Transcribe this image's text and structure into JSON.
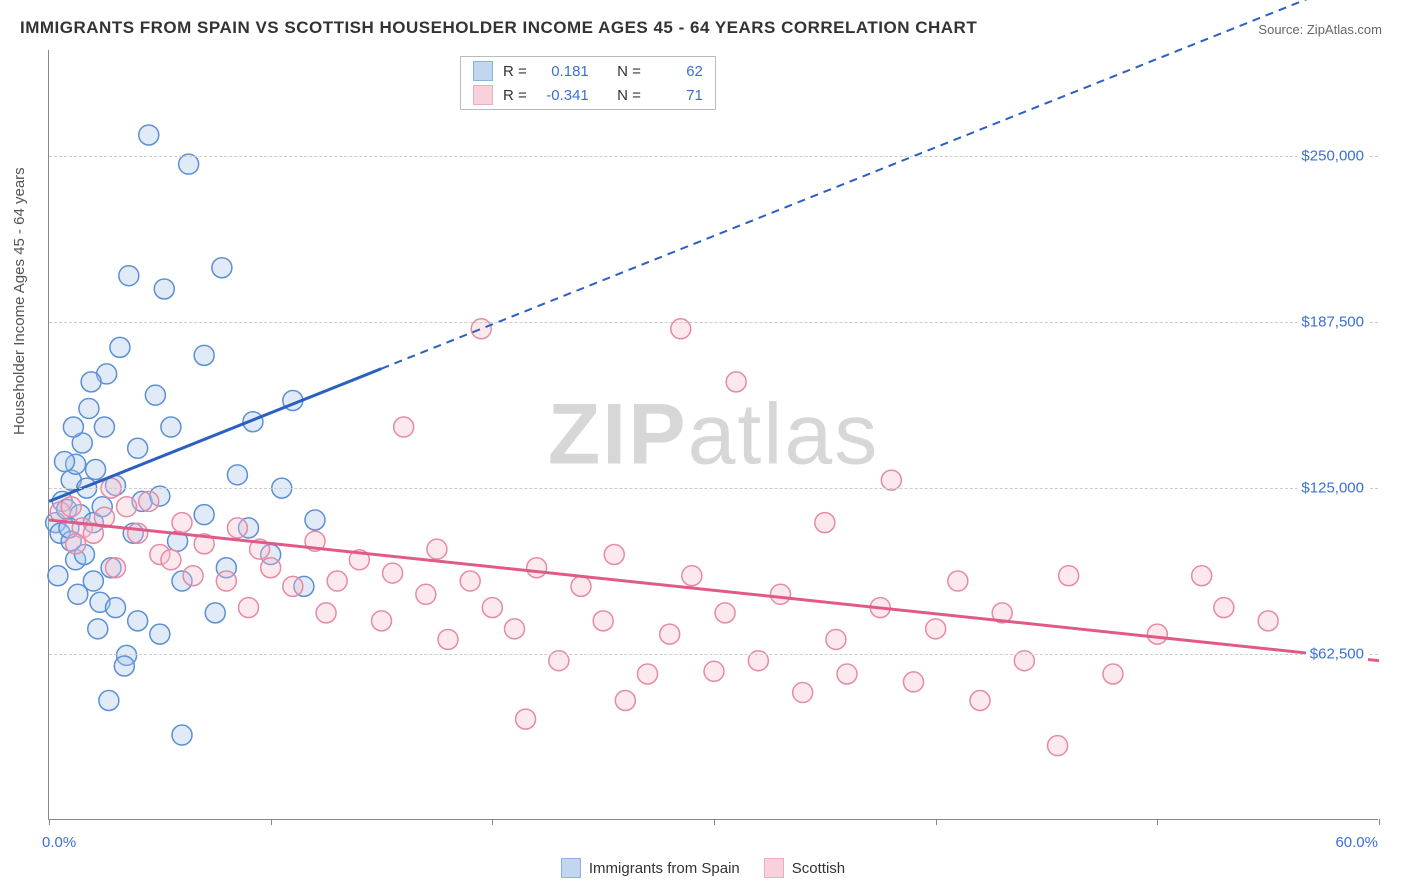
{
  "title": "IMMIGRANTS FROM SPAIN VS SCOTTISH HOUSEHOLDER INCOME AGES 45 - 64 YEARS CORRELATION CHART",
  "source_label": "Source:",
  "source_name": "ZipAtlas.com",
  "watermark": {
    "part1": "ZIP",
    "part2": "atlas"
  },
  "y_axis_label": "Householder Income Ages 45 - 64 years",
  "chart": {
    "type": "scatter",
    "background_color": "#ffffff",
    "grid_color": "#cccccc",
    "axis_color": "#888888",
    "tick_label_color": "#3b6fd6",
    "x_range": [
      0,
      60
    ],
    "y_range": [
      0,
      290000
    ],
    "x_ticks": [
      0,
      10,
      20,
      30,
      40,
      50,
      60
    ],
    "x_tick_labels": {
      "0": "0.0%",
      "60": "60.0%"
    },
    "y_gridlines": [
      62500,
      125000,
      187500,
      250000
    ],
    "y_tick_labels": {
      "62500": "$62,500",
      "125000": "$125,000",
      "187500": "$187,500",
      "250000": "$250,000"
    },
    "marker_radius": 10,
    "marker_stroke_width": 1.5,
    "marker_fill_opacity": 0.35,
    "line_width": 3,
    "series": [
      {
        "id": "spain",
        "label": "Immigrants from Spain",
        "color_stroke": "#5b8fd6",
        "color_fill": "#a9c6eb",
        "line_color": "#2b5fc0",
        "R": "0.181",
        "N": "62",
        "trend": {
          "x1": 0,
          "y1": 120000,
          "x2": 60,
          "y2": 320000,
          "solid_until_x": 15
        },
        "points": [
          [
            0.3,
            112000
          ],
          [
            0.5,
            108000
          ],
          [
            0.6,
            120000
          ],
          [
            0.8,
            117000
          ],
          [
            1.0,
            128000
          ],
          [
            1.0,
            105000
          ],
          [
            1.2,
            134000
          ],
          [
            1.2,
            98000
          ],
          [
            1.4,
            115000
          ],
          [
            1.5,
            142000
          ],
          [
            1.6,
            100000
          ],
          [
            1.7,
            125000
          ],
          [
            1.8,
            155000
          ],
          [
            2.0,
            112000
          ],
          [
            2.0,
            90000
          ],
          [
            2.1,
            132000
          ],
          [
            2.3,
            82000
          ],
          [
            2.4,
            118000
          ],
          [
            2.5,
            148000
          ],
          [
            2.6,
            168000
          ],
          [
            2.8,
            95000
          ],
          [
            3.0,
            126000
          ],
          [
            3.0,
            80000
          ],
          [
            3.2,
            178000
          ],
          [
            3.5,
            62000
          ],
          [
            3.6,
            205000
          ],
          [
            3.8,
            108000
          ],
          [
            4.0,
            140000
          ],
          [
            4.0,
            75000
          ],
          [
            4.2,
            120000
          ],
          [
            4.5,
            258000
          ],
          [
            4.8,
            160000
          ],
          [
            5.0,
            70000
          ],
          [
            5.0,
            122000
          ],
          [
            5.2,
            200000
          ],
          [
            5.5,
            148000
          ],
          [
            5.8,
            105000
          ],
          [
            6.0,
            32000
          ],
          [
            6.0,
            90000
          ],
          [
            6.3,
            247000
          ],
          [
            7.0,
            175000
          ],
          [
            7.0,
            115000
          ],
          [
            7.5,
            78000
          ],
          [
            7.8,
            208000
          ],
          [
            8.0,
            95000
          ],
          [
            8.5,
            130000
          ],
          [
            9.0,
            110000
          ],
          [
            9.2,
            150000
          ],
          [
            10.0,
            100000
          ],
          [
            10.5,
            125000
          ],
          [
            11.0,
            158000
          ],
          [
            11.5,
            88000
          ],
          [
            12.0,
            113000
          ],
          [
            0.4,
            92000
          ],
          [
            0.7,
            135000
          ],
          [
            1.1,
            148000
          ],
          [
            1.3,
            85000
          ],
          [
            1.9,
            165000
          ],
          [
            2.2,
            72000
          ],
          [
            3.4,
            58000
          ],
          [
            2.7,
            45000
          ],
          [
            0.9,
            110000
          ]
        ]
      },
      {
        "id": "scottish",
        "label": "Scottish",
        "color_stroke": "#e68aa5",
        "color_fill": "#f5c0ce",
        "line_color": "#e15a87",
        "R": "-0.341",
        "N": "71",
        "trend": {
          "x1": 0,
          "y1": 113000,
          "x2": 60,
          "y2": 60000,
          "solid_until_x": 60
        },
        "points": [
          [
            0.5,
            116000
          ],
          [
            1.0,
            118000
          ],
          [
            1.5,
            110000
          ],
          [
            2.0,
            108000
          ],
          [
            2.5,
            114000
          ],
          [
            3.0,
            95000
          ],
          [
            3.5,
            118000
          ],
          [
            4.0,
            108000
          ],
          [
            4.5,
            120000
          ],
          [
            5.0,
            100000
          ],
          [
            5.5,
            98000
          ],
          [
            6.0,
            112000
          ],
          [
            6.5,
            92000
          ],
          [
            7.0,
            104000
          ],
          [
            8.0,
            90000
          ],
          [
            8.5,
            110000
          ],
          [
            9.0,
            80000
          ],
          [
            9.5,
            102000
          ],
          [
            10.0,
            95000
          ],
          [
            11.0,
            88000
          ],
          [
            12.0,
            105000
          ],
          [
            12.5,
            78000
          ],
          [
            13.0,
            90000
          ],
          [
            14.0,
            98000
          ],
          [
            15.0,
            75000
          ],
          [
            15.5,
            93000
          ],
          [
            16.0,
            148000
          ],
          [
            17.0,
            85000
          ],
          [
            17.5,
            102000
          ],
          [
            18.0,
            68000
          ],
          [
            19.0,
            90000
          ],
          [
            19.5,
            185000
          ],
          [
            20.0,
            80000
          ],
          [
            21.0,
            72000
          ],
          [
            21.5,
            38000
          ],
          [
            22.0,
            95000
          ],
          [
            23.0,
            60000
          ],
          [
            24.0,
            88000
          ],
          [
            25.0,
            75000
          ],
          [
            25.5,
            100000
          ],
          [
            26.0,
            45000
          ],
          [
            27.0,
            55000
          ],
          [
            28.0,
            70000
          ],
          [
            28.5,
            185000
          ],
          [
            29.0,
            92000
          ],
          [
            30.0,
            56000
          ],
          [
            30.5,
            78000
          ],
          [
            31.0,
            165000
          ],
          [
            32.0,
            60000
          ],
          [
            33.0,
            85000
          ],
          [
            34.0,
            48000
          ],
          [
            35.0,
            112000
          ],
          [
            35.5,
            68000
          ],
          [
            36.0,
            55000
          ],
          [
            37.5,
            80000
          ],
          [
            38.0,
            128000
          ],
          [
            39.0,
            52000
          ],
          [
            40.0,
            72000
          ],
          [
            41.0,
            90000
          ],
          [
            42.0,
            45000
          ],
          [
            43.0,
            78000
          ],
          [
            44.0,
            60000
          ],
          [
            45.5,
            28000
          ],
          [
            46.0,
            92000
          ],
          [
            48.0,
            55000
          ],
          [
            50.0,
            70000
          ],
          [
            52.0,
            92000
          ],
          [
            53.0,
            80000
          ],
          [
            55.0,
            75000
          ],
          [
            1.2,
            104000
          ],
          [
            2.8,
            125000
          ]
        ]
      }
    ]
  },
  "legend_top": {
    "R_label": "R =",
    "N_label": "N ="
  }
}
